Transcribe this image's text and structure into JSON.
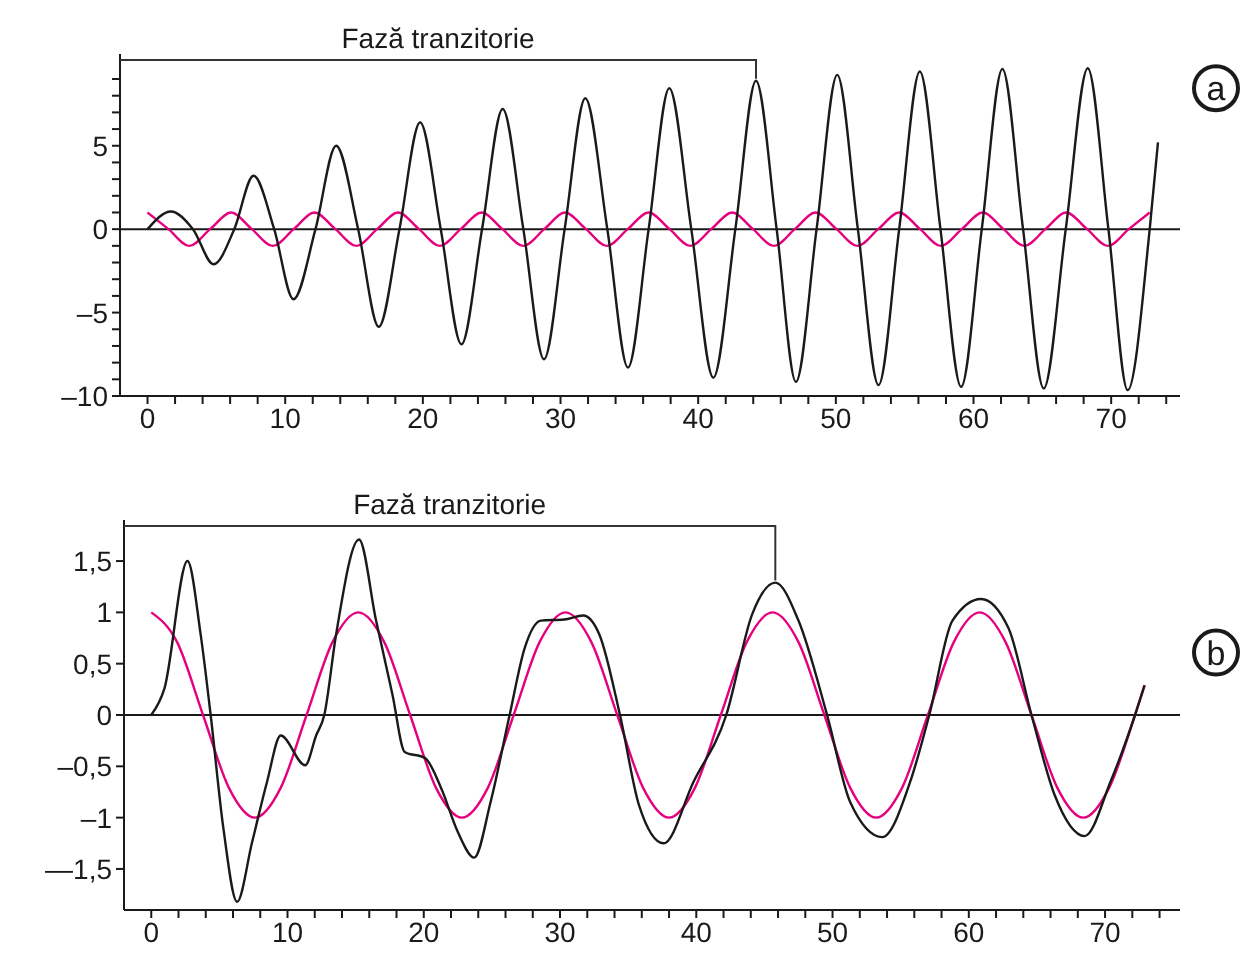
{
  "chart_data": [
    {
      "type": "line",
      "xlim": [
        -2,
        75
      ],
      "ylim": [
        -10,
        10.5
      ],
      "xticks": [
        0,
        {
          "value": 2,
          "label": null
        },
        {
          "value": 4,
          "label": null
        },
        {
          "value": 6,
          "label": null
        },
        {
          "value": 8,
          "label": null
        },
        10,
        {
          "value": 12,
          "label": null
        },
        {
          "value": 14,
          "label": null
        },
        {
          "value": 16,
          "label": null
        },
        {
          "value": 18,
          "label": null
        },
        20,
        {
          "value": 22,
          "label": null
        },
        {
          "value": 24,
          "label": null
        },
        {
          "value": 26,
          "label": null
        },
        {
          "value": 28,
          "label": null
        },
        30,
        {
          "value": 32,
          "label": null
        },
        {
          "value": 34,
          "label": null
        },
        {
          "value": 36,
          "label": null
        },
        {
          "value": 38,
          "label": null
        },
        40,
        {
          "value": 42,
          "label": null
        },
        {
          "value": 44,
          "label": null
        },
        {
          "value": 46,
          "label": null
        },
        {
          "value": 48,
          "label": null
        },
        50,
        {
          "value": 52,
          "label": null
        },
        {
          "value": 54,
          "label": null
        },
        {
          "value": 56,
          "label": null
        },
        {
          "value": 58,
          "label": null
        },
        60,
        {
          "value": 62,
          "label": null
        },
        {
          "value": 64,
          "label": null
        },
        {
          "value": 66,
          "label": null
        },
        {
          "value": 68,
          "label": null
        },
        70,
        {
          "value": 72,
          "label": null
        },
        {
          "value": 74,
          "label": null
        }
      ],
      "yticks": [
        {
          "value": -10,
          "label": "–10"
        },
        {
          "value": -9,
          "label": null
        },
        {
          "value": -8,
          "label": null
        },
        {
          "value": -7,
          "label": null
        },
        {
          "value": -6,
          "label": null
        },
        {
          "value": -5,
          "label": "–5"
        },
        {
          "value": -4,
          "label": null
        },
        {
          "value": -3,
          "label": null
        },
        {
          "value": -2,
          "label": null
        },
        {
          "value": -1,
          "label": null
        },
        0,
        {
          "value": 1,
          "label": null
        },
        {
          "value": 2,
          "label": null
        },
        {
          "value": 3,
          "label": null
        },
        {
          "value": 4,
          "label": null
        },
        5,
        {
          "value": 6,
          "label": null
        },
        {
          "value": 7,
          "label": null
        },
        {
          "value": 8,
          "label": null
        },
        {
          "value": 9,
          "label": null
        }
      ],
      "line_style": "solid",
      "series": [
        {
          "color": "#e6007e",
          "x": [
            0,
            1.52,
            3.03,
            4.55,
            6.07,
            7.58,
            9.1,
            10.62,
            12.13,
            13.65,
            15.17,
            16.68,
            18.2,
            19.72,
            21.23,
            22.75,
            24.27,
            25.78,
            27.3,
            28.82,
            30.33,
            31.85,
            33.37,
            34.88,
            36.4,
            37.92,
            39.43,
            40.95,
            42.47,
            43.98,
            45.5,
            47.02,
            48.53,
            50.05,
            51.57,
            53.08,
            54.6,
            56.12,
            57.63,
            59.15,
            60.67,
            62.18,
            63.7,
            65.22,
            66.73,
            68.25,
            69.77,
            71.28,
            72.8
          ],
          "values": [
            1,
            0,
            -1,
            0,
            1,
            0,
            -1,
            0,
            1,
            0,
            -1,
            0,
            1,
            0,
            -1,
            0,
            1,
            0,
            -1,
            0,
            1,
            0,
            -1,
            0,
            1,
            0,
            -1,
            0,
            1,
            0,
            -1,
            0,
            1,
            0,
            -1,
            0,
            1,
            0,
            -1,
            0,
            1,
            0,
            -1,
            0,
            1,
            0,
            -1,
            0,
            1
          ]
        },
        {
          "color": "#1a1a1a",
          "x": [
            0,
            1.7,
            3.3,
            4.8,
            6.3,
            7.7,
            9.2,
            10.6,
            12.2,
            13.7,
            15.3,
            16.8,
            18.3,
            19.8,
            21.3,
            22.8,
            24.3,
            25.8,
            27.3,
            28.8,
            30.3,
            31.8,
            33.4,
            34.9,
            36.4,
            37.9,
            39.5,
            41.1,
            42.7,
            44.2,
            45.7,
            47.1,
            48.6,
            50.1,
            51.6,
            53.1,
            54.6,
            56.1,
            57.6,
            59.1,
            60.6,
            62.1,
            63.6,
            65.1,
            66.7,
            68.3,
            69.8,
            71.2,
            72.8,
            73.4
          ],
          "values": [
            0,
            1.06,
            0,
            -2.1,
            0,
            3.2,
            0,
            -4.2,
            0,
            5.0,
            0,
            -5.85,
            0,
            6.4,
            0,
            -6.9,
            0,
            7.2,
            0,
            -7.8,
            0,
            7.85,
            0,
            -8.3,
            0,
            8.45,
            0,
            -8.9,
            0,
            8.9,
            0,
            -9.15,
            0,
            9.25,
            0,
            -9.35,
            0,
            9.45,
            0,
            -9.45,
            0,
            9.6,
            0,
            -9.55,
            0,
            9.65,
            0,
            -9.65,
            0,
            5.2
          ]
        }
      ],
      "ref_lines": [
        {
          "axis": "y",
          "value": 0,
          "color": "#1a1a1a"
        }
      ],
      "annotations": [
        {
          "text": "Fază tranzitorie",
          "x": 44.2,
          "y": 8.9
        },
        "a"
      ]
    },
    {
      "type": "line",
      "xlim": [
        -2,
        75.5
      ],
      "ylim": [
        -1.9,
        1.9
      ],
      "xticks": [
        0,
        {
          "value": 2,
          "label": null
        },
        {
          "value": 4,
          "label": null
        },
        {
          "value": 6,
          "label": null
        },
        {
          "value": 8,
          "label": null
        },
        10,
        {
          "value": 12,
          "label": null
        },
        {
          "value": 14,
          "label": null
        },
        {
          "value": 16,
          "label": null
        },
        {
          "value": 18,
          "label": null
        },
        20,
        {
          "value": 22,
          "label": null
        },
        {
          "value": 24,
          "label": null
        },
        {
          "value": 26,
          "label": null
        },
        {
          "value": 28,
          "label": null
        },
        30,
        {
          "value": 32,
          "label": null
        },
        {
          "value": 34,
          "label": null
        },
        {
          "value": 36,
          "label": null
        },
        {
          "value": 38,
          "label": null
        },
        40,
        {
          "value": 42,
          "label": null
        },
        {
          "value": 44,
          "label": null
        },
        {
          "value": 46,
          "label": null
        },
        {
          "value": 48,
          "label": null
        },
        50,
        {
          "value": 52,
          "label": null
        },
        {
          "value": 54,
          "label": null
        },
        {
          "value": 56,
          "label": null
        },
        {
          "value": 58,
          "label": null
        },
        60,
        {
          "value": 62,
          "label": null
        },
        {
          "value": 64,
          "label": null
        },
        {
          "value": 66,
          "label": null
        },
        {
          "value": 68,
          "label": null
        },
        70,
        {
          "value": 72,
          "label": null
        },
        {
          "value": 74,
          "label": null
        }
      ],
      "yticks": [
        {
          "value": -1.5,
          "label": "—1,5"
        },
        {
          "value": -1,
          "label": "–1"
        },
        {
          "value": -0.5,
          "label": "–0,5"
        },
        0,
        {
          "value": 0.5,
          "label": "0,5"
        },
        1,
        {
          "value": 1.5,
          "label": "1,5"
        }
      ],
      "line_style": "solid",
      "series": [
        {
          "color": "#e6007e",
          "x": [
            0,
            1.9,
            3.8,
            5.7,
            7.6,
            9.5,
            11.4,
            13.3,
            15.2,
            17.1,
            19,
            20.9,
            22.8,
            24.7,
            26.6,
            28.5,
            30.4,
            32.3,
            34.2,
            36.1,
            38,
            39.9,
            41.8,
            43.7,
            45.6,
            47.5,
            49.4,
            51.3,
            53.2,
            55.1,
            57,
            58.9,
            60.8,
            62.7,
            64.6,
            66.5,
            68.4,
            70.3,
            72.2,
            72.9
          ],
          "values": [
            1,
            0.71,
            0,
            -0.71,
            -1,
            -0.71,
            0,
            0.71,
            1,
            0.71,
            0,
            -0.71,
            -1,
            -0.71,
            0,
            0.71,
            1,
            0.71,
            0,
            -0.71,
            -1,
            -0.71,
            0,
            0.71,
            1,
            0.71,
            0,
            -0.71,
            -1,
            -0.71,
            0,
            0.71,
            1,
            0.71,
            0,
            -0.71,
            -1,
            -0.71,
            0,
            0.29
          ]
        },
        {
          "color": "#1a1a1a",
          "x": [
            0,
            0.97,
            2.66,
            3.63,
            4.36,
            5.3,
            6.3,
            7.4,
            8.5,
            9.5,
            11.3,
            12.1,
            12.7,
            13.56,
            15.25,
            16.5,
            17.7,
            18.6,
            20.1,
            21.3,
            22.5,
            23.7,
            24.9,
            26.3,
            27.4,
            28.6,
            30.3,
            31.7,
            32.9,
            34.4,
            35.8,
            37.6,
            39.8,
            42.2,
            44.1,
            45.8,
            47.5,
            49.6,
            51.3,
            53.65,
            55.7,
            57.1,
            58.8,
            60.9,
            62.9,
            64.6,
            66.3,
            68.5,
            70.4,
            72.2,
            72.9
          ],
          "values": [
            0,
            0.26,
            1.5,
            0.78,
            0,
            -1.11,
            -1.82,
            -1.24,
            -0.65,
            -0.2,
            -0.49,
            -0.2,
            0,
            0.78,
            1.71,
            0.92,
            0.2,
            -0.36,
            -0.42,
            -0.72,
            -1.14,
            -1.39,
            -0.85,
            0,
            0.65,
            0.92,
            0.93,
            0.97,
            0.78,
            0,
            -0.88,
            -1.25,
            -0.65,
            0,
            0.98,
            1.29,
            0.92,
            0,
            -0.85,
            -1.19,
            -0.65,
            0,
            0.92,
            1.13,
            0.85,
            0,
            -0.78,
            -1.18,
            -0.65,
            0,
            0.29
          ]
        }
      ],
      "ref_lines": [
        {
          "axis": "y",
          "value": 0,
          "color": "#1a1a1a"
        }
      ],
      "annotations": [
        {
          "text": "Fază tranzitorie",
          "x": 45.8,
          "y": 1.29
        },
        "b"
      ]
    }
  ]
}
